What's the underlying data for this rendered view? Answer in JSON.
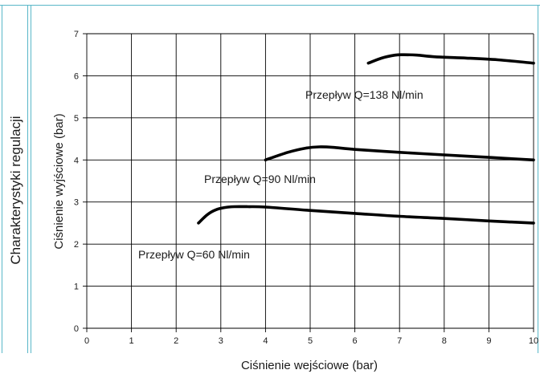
{
  "side_title": "Charakterystyki regulacji",
  "chart_data": {
    "type": "line",
    "title": "",
    "xlabel": "Ciśnienie wejściowe (bar)",
    "ylabel": "Ciśnienie wyjściowe (bar)",
    "xlim": [
      0,
      10
    ],
    "ylim": [
      0,
      7
    ],
    "xticks": [
      "0",
      "1",
      "2",
      "3",
      "4",
      "5",
      "6",
      "7",
      "8",
      "9",
      "10"
    ],
    "yticks": [
      "0",
      "1",
      "2",
      "3",
      "4",
      "5",
      "6",
      "7"
    ],
    "grid": true,
    "series": [
      {
        "name": "Przepływ Q=60 Nl/min",
        "x": [
          2.5,
          2.7,
          2.9,
          3.1,
          3.3,
          3.6,
          4.0,
          5.0,
          6.0,
          7.0,
          8.0,
          9.0,
          10.0
        ],
        "y": [
          2.5,
          2.7,
          2.82,
          2.87,
          2.89,
          2.89,
          2.88,
          2.8,
          2.73,
          2.66,
          2.61,
          2.55,
          2.5
        ]
      },
      {
        "name": "Przepływ Q=90 Nl/min",
        "x": [
          4.0,
          4.5,
          4.9,
          5.2,
          5.5,
          6.0,
          7.0,
          8.0,
          9.0,
          10.0
        ],
        "y": [
          4.0,
          4.18,
          4.28,
          4.31,
          4.3,
          4.25,
          4.18,
          4.12,
          4.06,
          4.0
        ]
      },
      {
        "name": "Przepływ Q=138 Nl/min",
        "x": [
          6.3,
          6.6,
          6.9,
          7.1,
          7.4,
          7.8,
          8.5,
          9.2,
          10.0
        ],
        "y": [
          6.3,
          6.42,
          6.49,
          6.5,
          6.49,
          6.45,
          6.42,
          6.38,
          6.3
        ]
      }
    ],
    "annotations": [
      "Przepływ Q=60 Nl/min",
      "Przepływ Q=90 Nl/min",
      "Przepływ Q=138 Nl/min"
    ]
  }
}
